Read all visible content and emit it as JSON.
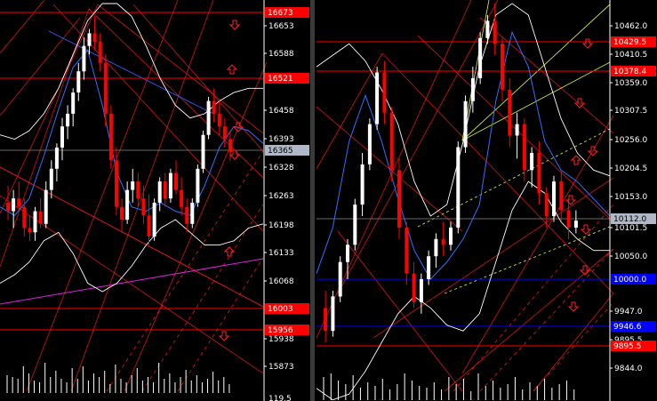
{
  "colors": {
    "background": "#000000",
    "bull_candle": "#ffffff",
    "bear_candle": "#ff0000",
    "level_line": "#ff0000",
    "support_line": "#0000ff",
    "fan_line": "#ff1a1a",
    "bands": "#ffffff",
    "ma": "#3070ff",
    "trend_pink": "#e020e0",
    "trend_yellow": "#c8e040",
    "arrow": "#ff2020",
    "current_price_bg": "#b0b8c8",
    "tick_text": "#ffffff"
  },
  "chart_data": [
    {
      "type": "candlestick",
      "title": "",
      "y_ticks": [
        "16653",
        "16588",
        "16458",
        "16393",
        "16328",
        "16263",
        "16198",
        "16133",
        "16068",
        "15938",
        "15873"
      ],
      "level_labels": [
        "16673",
        "16521",
        "16003",
        "15956"
      ],
      "current_price": "16365",
      "bottom_axis_label": "119.5",
      "ylim": [
        15805,
        16720
      ],
      "candles": [
        [
          16250,
          16290,
          16210,
          16230
        ],
        [
          16230,
          16280,
          16190,
          16260
        ],
        [
          16260,
          16300,
          16230,
          16240
        ],
        [
          16240,
          16260,
          16170,
          16190
        ],
        [
          16190,
          16220,
          16160,
          16180
        ],
        [
          16180,
          16240,
          16160,
          16230
        ],
        [
          16230,
          16260,
          16190,
          16200
        ],
        [
          16200,
          16300,
          16190,
          16280
        ],
        [
          16280,
          16350,
          16260,
          16330
        ],
        [
          16330,
          16390,
          16300,
          16380
        ],
        [
          16380,
          16450,
          16350,
          16430
        ],
        [
          16430,
          16480,
          16400,
          16460
        ],
        [
          16460,
          16520,
          16430,
          16510
        ],
        [
          16510,
          16580,
          16490,
          16560
        ],
        [
          16560,
          16640,
          16540,
          16620
        ],
        [
          16620,
          16660,
          16600,
          16650
        ],
        [
          16650,
          16690,
          16610,
          16630
        ],
        [
          16630,
          16650,
          16560,
          16580
        ],
        [
          16580,
          16600,
          16430,
          16460
        ],
        [
          16460,
          16480,
          16330,
          16350
        ],
        [
          16350,
          16380,
          16220,
          16240
        ],
        [
          16240,
          16260,
          16180,
          16210
        ],
        [
          16210,
          16300,
          16200,
          16280
        ],
        [
          16280,
          16330,
          16250,
          16300
        ],
        [
          16300,
          16320,
          16240,
          16260
        ],
        [
          16260,
          16290,
          16200,
          16220
        ],
        [
          16220,
          16270,
          16150,
          16170
        ],
        [
          16170,
          16260,
          16160,
          16250
        ],
        [
          16250,
          16310,
          16230,
          16300
        ],
        [
          16300,
          16320,
          16240,
          16260
        ],
        [
          16260,
          16330,
          16250,
          16320
        ],
        [
          16320,
          16350,
          16270,
          16280
        ],
        [
          16280,
          16310,
          16220,
          16240
        ],
        [
          16240,
          16260,
          16180,
          16200
        ],
        [
          16200,
          16260,
          16190,
          16250
        ],
        [
          16250,
          16340,
          16240,
          16330
        ],
        [
          16330,
          16420,
          16320,
          16410
        ],
        [
          16410,
          16500,
          16400,
          16490
        ],
        [
          16490,
          16520,
          16440,
          16460
        ],
        [
          16460,
          16490,
          16410,
          16430
        ],
        [
          16430,
          16450,
          16380,
          16400
        ],
        [
          16400,
          16420,
          16350,
          16370
        ]
      ],
      "upper_band": [
        16410,
        16400,
        16420,
        16460,
        16520,
        16600,
        16680,
        16720,
        16720,
        16690,
        16620,
        16540,
        16480,
        16450,
        16460,
        16490,
        16510,
        16520,
        16520
      ],
      "lower_band": [
        16060,
        16080,
        16110,
        16160,
        16180,
        16130,
        16060,
        16040,
        16060,
        16100,
        16150,
        16190,
        16210,
        16180,
        16150,
        16150,
        16160,
        16190,
        16200
      ],
      "ma": [
        16240,
        16220,
        16260,
        16360,
        16470,
        16570,
        16610,
        16480,
        16320,
        16240,
        16230,
        16250,
        16230,
        16220,
        16290,
        16380,
        16430,
        16420,
        16390
      ],
      "volume": [
        20,
        18,
        16,
        30,
        22,
        14,
        12,
        34,
        18,
        25,
        16,
        12,
        28,
        16,
        30,
        14,
        22,
        18,
        25,
        10,
        32,
        16,
        12,
        20,
        28,
        14,
        18,
        12,
        34,
        16,
        22,
        12,
        18,
        26,
        14,
        20,
        12,
        16,
        24,
        14,
        18,
        10
      ],
      "arrows": [
        "down",
        "up",
        "down",
        "down",
        "up",
        "up",
        "down"
      ]
    },
    {
      "type": "candlestick",
      "title": "",
      "y_ticks": [
        "10462.0",
        "10410.5",
        "10359.0",
        "10307.5",
        "10256.0",
        "10204.5",
        "10153.0",
        "10101.5",
        "10050.0",
        "9947.0",
        "9895.5",
        "9844.0"
      ],
      "level_labels": [
        "10429.5",
        "10378.4",
        "10000.0",
        "9946.6",
        "9895.5"
      ],
      "current_price": "10112.0",
      "ylim": [
        9815,
        10490
      ],
      "candles": [
        [
          9960,
          9990,
          9900,
          9920
        ],
        [
          9920,
          9990,
          9910,
          9980
        ],
        [
          9980,
          10050,
          9970,
          10040
        ],
        [
          10040,
          10080,
          10010,
          10070
        ],
        [
          10070,
          10150,
          10060,
          10140
        ],
        [
          10140,
          10230,
          10120,
          10210
        ],
        [
          10210,
          10290,
          10200,
          10280
        ],
        [
          10280,
          10380,
          10270,
          10370
        ],
        [
          10370,
          10390,
          10280,
          10300
        ],
        [
          10300,
          10310,
          10180,
          10200
        ],
        [
          10200,
          10220,
          10080,
          10100
        ],
        [
          10100,
          10110,
          10000,
          10020
        ],
        [
          10020,
          10040,
          9960,
          9970
        ],
        [
          9970,
          10020,
          9950,
          10010
        ],
        [
          10010,
          10060,
          10000,
          10050
        ],
        [
          10050,
          10090,
          10030,
          10080
        ],
        [
          10080,
          10110,
          10050,
          10070
        ],
        [
          10070,
          10110,
          10060,
          10100
        ],
        [
          10100,
          10250,
          10090,
          10240
        ],
        [
          10240,
          10330,
          10230,
          10320
        ],
        [
          10320,
          10380,
          10300,
          10360
        ],
        [
          10360,
          10440,
          10350,
          10430
        ],
        [
          10430,
          10470,
          10420,
          10460
        ],
        [
          10460,
          10490,
          10400,
          10420
        ],
        [
          10420,
          10430,
          10320,
          10340
        ],
        [
          10340,
          10360,
          10240,
          10260
        ],
        [
          10260,
          10300,
          10220,
          10280
        ],
        [
          10280,
          10290,
          10180,
          10200
        ],
        [
          10200,
          10240,
          10170,
          10230
        ],
        [
          10230,
          10250,
          10140,
          10160
        ],
        [
          10160,
          10170,
          10100,
          10120
        ],
        [
          10120,
          10190,
          10110,
          10180
        ],
        [
          10180,
          10200,
          10110,
          10130
        ],
        [
          10130,
          10150,
          10080,
          10100
        ],
        [
          10100,
          10130,
          10090,
          10112
        ]
      ],
      "upper_band": [
        10380,
        10400,
        10420,
        10390,
        10340,
        10280,
        10180,
        10120,
        10140,
        10250,
        10380,
        10470,
        10490,
        10470,
        10380,
        10290,
        10230,
        10200,
        10190
      ],
      "lower_band": [
        9820,
        9800,
        9810,
        9850,
        9900,
        9950,
        9980,
        9960,
        9930,
        9920,
        9950,
        10040,
        10130,
        10180,
        10160,
        10110,
        10080,
        10060,
        10060
      ],
      "ma": [
        10020,
        10100,
        10250,
        10330,
        10250,
        10150,
        10060,
        10010,
        10040,
        10080,
        10140,
        10320,
        10440,
        10380,
        10250,
        10200,
        10180,
        10150,
        10120
      ],
      "volume": [
        26,
        30,
        22,
        18,
        28,
        14,
        20,
        16,
        24,
        12,
        18,
        30,
        22,
        16,
        14,
        20,
        12,
        26,
        18,
        24,
        10,
        30,
        16,
        22,
        14,
        18,
        26,
        12,
        20,
        16,
        24,
        14,
        18,
        22,
        12
      ],
      "arrows": [
        "down",
        "down",
        "up",
        "down",
        "down",
        "down",
        "down",
        "down"
      ]
    }
  ]
}
